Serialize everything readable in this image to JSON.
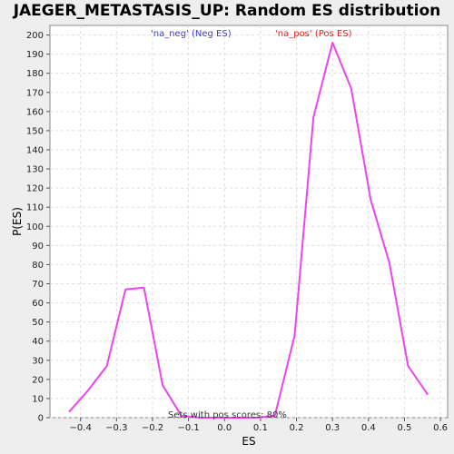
{
  "chart_data": {
    "type": "line",
    "title": "JAEGER_METASTASIS_UP: Random ES distribution",
    "xlabel": "ES",
    "ylabel": "P(ES)",
    "xlim": [
      -0.485,
      0.62
    ],
    "ylim": [
      0,
      205
    ],
    "x_ticks": [
      -0.4,
      -0.3,
      -0.2,
      -0.1,
      0.0,
      0.1,
      0.2,
      0.3,
      0.4,
      0.5,
      0.6
    ],
    "x_tick_labels": [
      "−0.4",
      "−0.3",
      "−0.2",
      "−0.1",
      "0.0",
      "0.1",
      "0.2",
      "0.3",
      "0.4",
      "0.5",
      "0.6"
    ],
    "y_ticks": [
      0,
      10,
      20,
      30,
      40,
      50,
      60,
      70,
      80,
      90,
      100,
      110,
      120,
      130,
      140,
      150,
      160,
      170,
      180,
      190,
      200
    ],
    "grid": true,
    "series": [
      {
        "color": "#ee44ee",
        "x": [
          -0.432,
          -0.38,
          -0.327,
          -0.275,
          -0.224,
          -0.172,
          -0.12,
          -0.068,
          -0.016,
          0.036,
          0.088,
          0.14,
          0.195,
          0.247,
          0.3,
          0.352,
          0.406,
          0.458,
          0.51,
          0.565
        ],
        "y": [
          3,
          14,
          27,
          67,
          68,
          17,
          1,
          0,
          0,
          0,
          0,
          1,
          43,
          157,
          196,
          172,
          114,
          81,
          27,
          12
        ]
      }
    ],
    "legend": {
      "neg": "'na_neg' (Neg ES)",
      "pos": "'na_pos' (Pos ES)"
    },
    "annotation": "Sets with pos scores: 80%",
    "colors": {
      "neg": "#3a3ae0",
      "pos": "#e02020",
      "line": "#ee44ee"
    }
  }
}
